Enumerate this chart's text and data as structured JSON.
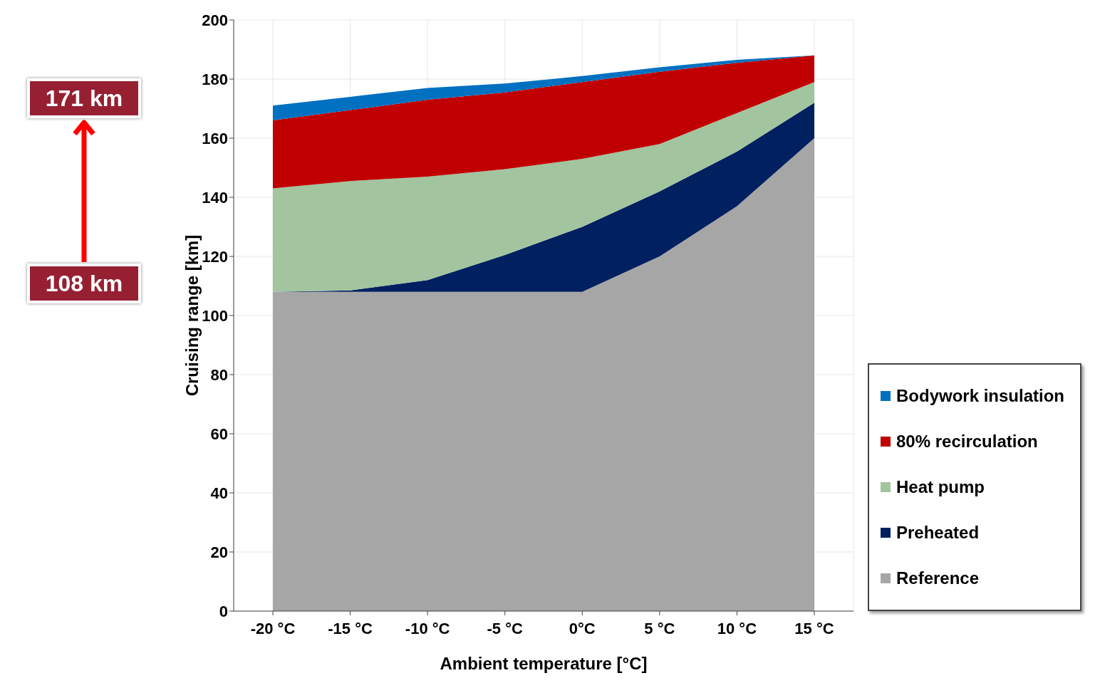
{
  "chart_data": {
    "type": "area",
    "stacked": true,
    "xlabel": "Ambient temperature [°C]",
    "ylabel": "Cruising range [km]",
    "categories": [
      "-20 °C",
      "-15 °C",
      "-10 °C",
      "-5 °C",
      "0°C",
      "5 °C",
      "10 °C",
      "15 °C"
    ],
    "series": [
      {
        "name": "Reference",
        "color": "#a6a6a6",
        "values": [
          108,
          108,
          108,
          108,
          108,
          120,
          137,
          160
        ]
      },
      {
        "name": "Preheated",
        "color": "#002060",
        "values": [
          0,
          0.5,
          4,
          12.5,
          22,
          22,
          18.5,
          12
        ]
      },
      {
        "name": "Heat pump",
        "color": "#a2c49f",
        "values": [
          35,
          37,
          35,
          29,
          23,
          16,
          13,
          7
        ]
      },
      {
        "name": "80% recirculation",
        "color": "#c00000",
        "values": [
          23,
          24,
          26,
          26,
          26,
          24.5,
          17,
          9
        ]
      },
      {
        "name": "Bodywork insulation",
        "color": "#0070c0",
        "values": [
          5,
          4.5,
          4,
          3,
          2,
          1.5,
          1,
          0
        ]
      }
    ],
    "ylim": [
      0,
      200
    ],
    "yticks": [
      0,
      20,
      40,
      60,
      80,
      100,
      120,
      140,
      160,
      180,
      200
    ],
    "grid": true,
    "legend": "bottom right",
    "annotations": [
      "171 km",
      "108 km"
    ]
  }
}
